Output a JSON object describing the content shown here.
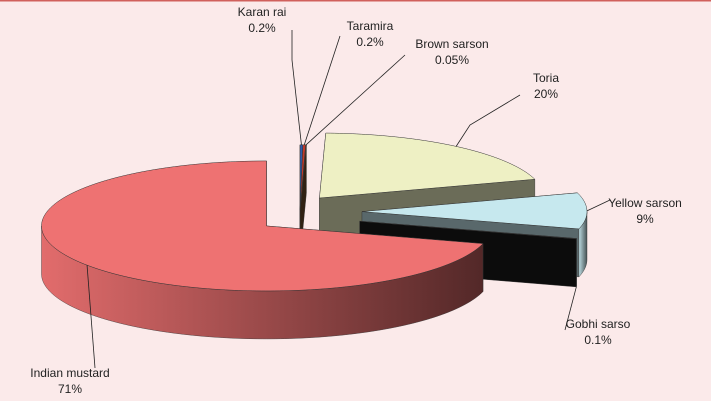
{
  "chart_data": {
    "type": "pie",
    "categories": [
      "Karan rai",
      "Taramira",
      "Brown sarson",
      "Toria",
      "Yellow sarson",
      "Gobhi sarso",
      "Indian mustard"
    ],
    "values": [
      0.2,
      0.2,
      0.05,
      20,
      9,
      0.1,
      71
    ],
    "value_labels": [
      "0.2%",
      "0.2%",
      "0.05%",
      "20%",
      "9%",
      "0.1%",
      "71%"
    ],
    "colors": [
      "#2f5aa8",
      "#c0392b",
      "#6b4a2a",
      "#eef0c4",
      "#c6e8ee",
      "#1a1a1a",
      "#ee7272"
    ]
  }
}
